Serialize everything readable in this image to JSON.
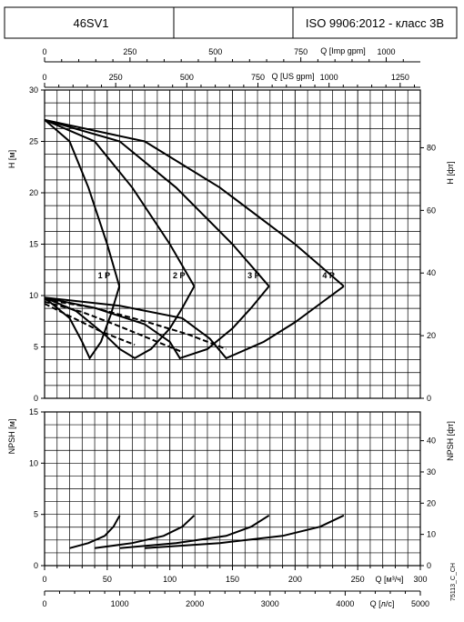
{
  "header": {
    "model": "46SV1",
    "standard": "ISO 9906:2012 - класс 3В"
  },
  "doc_code": "75113_C_CH",
  "chart_data": [
    {
      "type": "line",
      "name": "head",
      "ylabel_left": "H [м]",
      "ylabel_right": "H [фт]",
      "ylim": [
        0,
        30
      ],
      "yticks_left": [
        0,
        5,
        10,
        15,
        20,
        25,
        30
      ],
      "yticks_right": [
        0,
        20,
        40,
        60,
        80
      ],
      "grid": true,
      "series": [
        {
          "name": "1 P",
          "x": [
            0,
            20,
            35,
            50,
            59.7
          ],
          "y": [
            27.1,
            25.0,
            20.5,
            15.0,
            10.9
          ]
        },
        {
          "name": "2 P",
          "x": [
            0,
            40,
            70,
            100,
            119.5
          ],
          "y": [
            27.1,
            25.0,
            20.5,
            15.0,
            10.9
          ]
        },
        {
          "name": "3 P",
          "x": [
            0,
            60,
            105,
            150,
            179.2
          ],
          "y": [
            27.1,
            25.0,
            20.5,
            15.0,
            10.9
          ]
        },
        {
          "name": "4 P",
          "x": [
            0,
            80,
            140,
            200,
            238.9
          ],
          "y": [
            27.1,
            25.0,
            20.5,
            15.0,
            10.9
          ]
        }
      ],
      "efficiency_curves": [
        {
          "name": "1 P",
          "x": [
            0,
            20,
            30,
            36,
            45,
            53,
            59.7
          ],
          "y": [
            9.8,
            7.8,
            5.5,
            3.9,
            5.5,
            8.2,
            10.9
          ]
        },
        {
          "name": "2 P",
          "x": [
            0,
            25,
            48,
            60,
            72,
            85,
            100,
            110,
            119.5
          ],
          "y": [
            9.8,
            8.5,
            6.2,
            4.8,
            3.9,
            4.8,
            6.8,
            8.8,
            10.9
          ]
        },
        {
          "name": "3 P",
          "x": [
            0,
            40,
            80,
            100,
            108,
            130,
            150,
            165,
            179.2
          ],
          "y": [
            9.8,
            8.8,
            7.2,
            5.5,
            3.9,
            4.8,
            6.8,
            8.8,
            10.9
          ]
        },
        {
          "name": "4 P",
          "x": [
            0,
            60,
            110,
            132,
            145,
            175,
            200,
            220,
            238.9
          ],
          "y": [
            9.8,
            9.0,
            7.8,
            5.8,
            3.9,
            5.5,
            7.4,
            9.2,
            10.9
          ]
        }
      ],
      "dashed_curves": [
        {
          "x": [
            0,
            40,
            80,
            115,
            145
          ],
          "y": [
            9.6,
            8.8,
            7.5,
            6.2,
            4.8
          ]
        },
        {
          "x": [
            0,
            30,
            60,
            90,
            110
          ],
          "y": [
            9.4,
            8.4,
            7.0,
            5.5,
            4.5
          ]
        },
        {
          "x": [
            0,
            20,
            45,
            72
          ],
          "y": [
            9.2,
            8.0,
            6.5,
            5.2
          ]
        }
      ]
    },
    {
      "type": "line",
      "name": "npsh",
      "ylabel_left": "NPSH [м]",
      "ylabel_right": "NPSH [фт]",
      "ylim": [
        0,
        15
      ],
      "yticks_left": [
        0,
        5,
        10,
        15
      ],
      "yticks_right": [
        0,
        10,
        20,
        30,
        40
      ],
      "grid": true,
      "series": [
        {
          "name": "1 P",
          "x": [
            20,
            35,
            48,
            55,
            60
          ],
          "y": [
            1.7,
            2.2,
            2.9,
            3.8,
            4.9
          ]
        },
        {
          "name": "2 P",
          "x": [
            40,
            70,
            95,
            110,
            119.5
          ],
          "y": [
            1.7,
            2.2,
            2.9,
            3.8,
            4.9
          ]
        },
        {
          "name": "3 P",
          "x": [
            60,
            105,
            145,
            165,
            179.2
          ],
          "y": [
            1.7,
            2.2,
            2.9,
            3.8,
            4.9
          ]
        },
        {
          "name": "4 P",
          "x": [
            80,
            140,
            190,
            220,
            238.9
          ],
          "y": [
            1.7,
            2.2,
            2.9,
            3.8,
            4.9
          ]
        }
      ]
    }
  ],
  "axes": {
    "top1": {
      "label": "Q [Imp gpm]",
      "ticks": [
        0,
        250,
        500,
        750,
        1000
      ]
    },
    "top2": {
      "label": "Q [US gpm]",
      "ticks": [
        0,
        250,
        500,
        750,
        1000,
        1250
      ]
    },
    "bottom1": {
      "label": "Q [м³/ч]",
      "ticks": [
        0,
        50,
        100,
        150,
        200,
        250,
        300
      ]
    },
    "bottom2": {
      "label": "Q [л/с]",
      "ticks": [
        0,
        1000,
        2000,
        3000,
        4000,
        5000
      ]
    }
  }
}
